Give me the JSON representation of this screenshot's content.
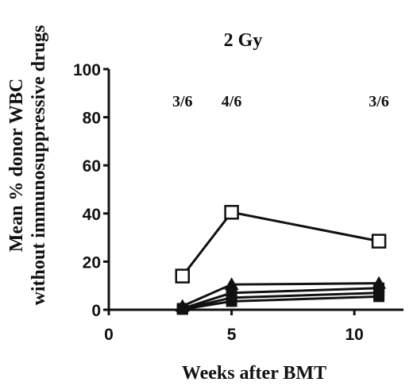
{
  "chart_data": {
    "type": "line",
    "title": "2 Gy",
    "xlabel": "Weeks after BMT",
    "ylabel_line1": "Mean % donor WBC",
    "ylabel_line2": "without immunosuppressive drugs",
    "xlim": [
      0,
      12
    ],
    "ylim": [
      0,
      100
    ],
    "xticks": [
      0,
      5,
      10
    ],
    "yticks": [
      0,
      20,
      40,
      60,
      80,
      100
    ],
    "grid": false,
    "annotations": [
      {
        "x": 3,
        "text": "3/6"
      },
      {
        "x": 5,
        "text": "4/6"
      },
      {
        "x": 11,
        "text": "3/6"
      }
    ],
    "series": [
      {
        "marker": "open-square",
        "x": [
          3,
          5,
          11
        ],
        "y": [
          14,
          40.5,
          28.5
        ]
      },
      {
        "marker": "filled-triangle",
        "x": [
          3,
          5,
          11
        ],
        "y": [
          1.5,
          10.5,
          11
        ]
      },
      {
        "marker": "filled-square",
        "x": [
          3,
          5,
          11
        ],
        "y": [
          0.5,
          7,
          9
        ]
      },
      {
        "marker": "filled-square",
        "x": [
          3,
          5,
          11
        ],
        "y": [
          0.3,
          5,
          7
        ]
      },
      {
        "marker": "filled-square",
        "x": [
          3,
          5,
          11
        ],
        "y": [
          0.2,
          3.5,
          5.5
        ]
      }
    ]
  }
}
